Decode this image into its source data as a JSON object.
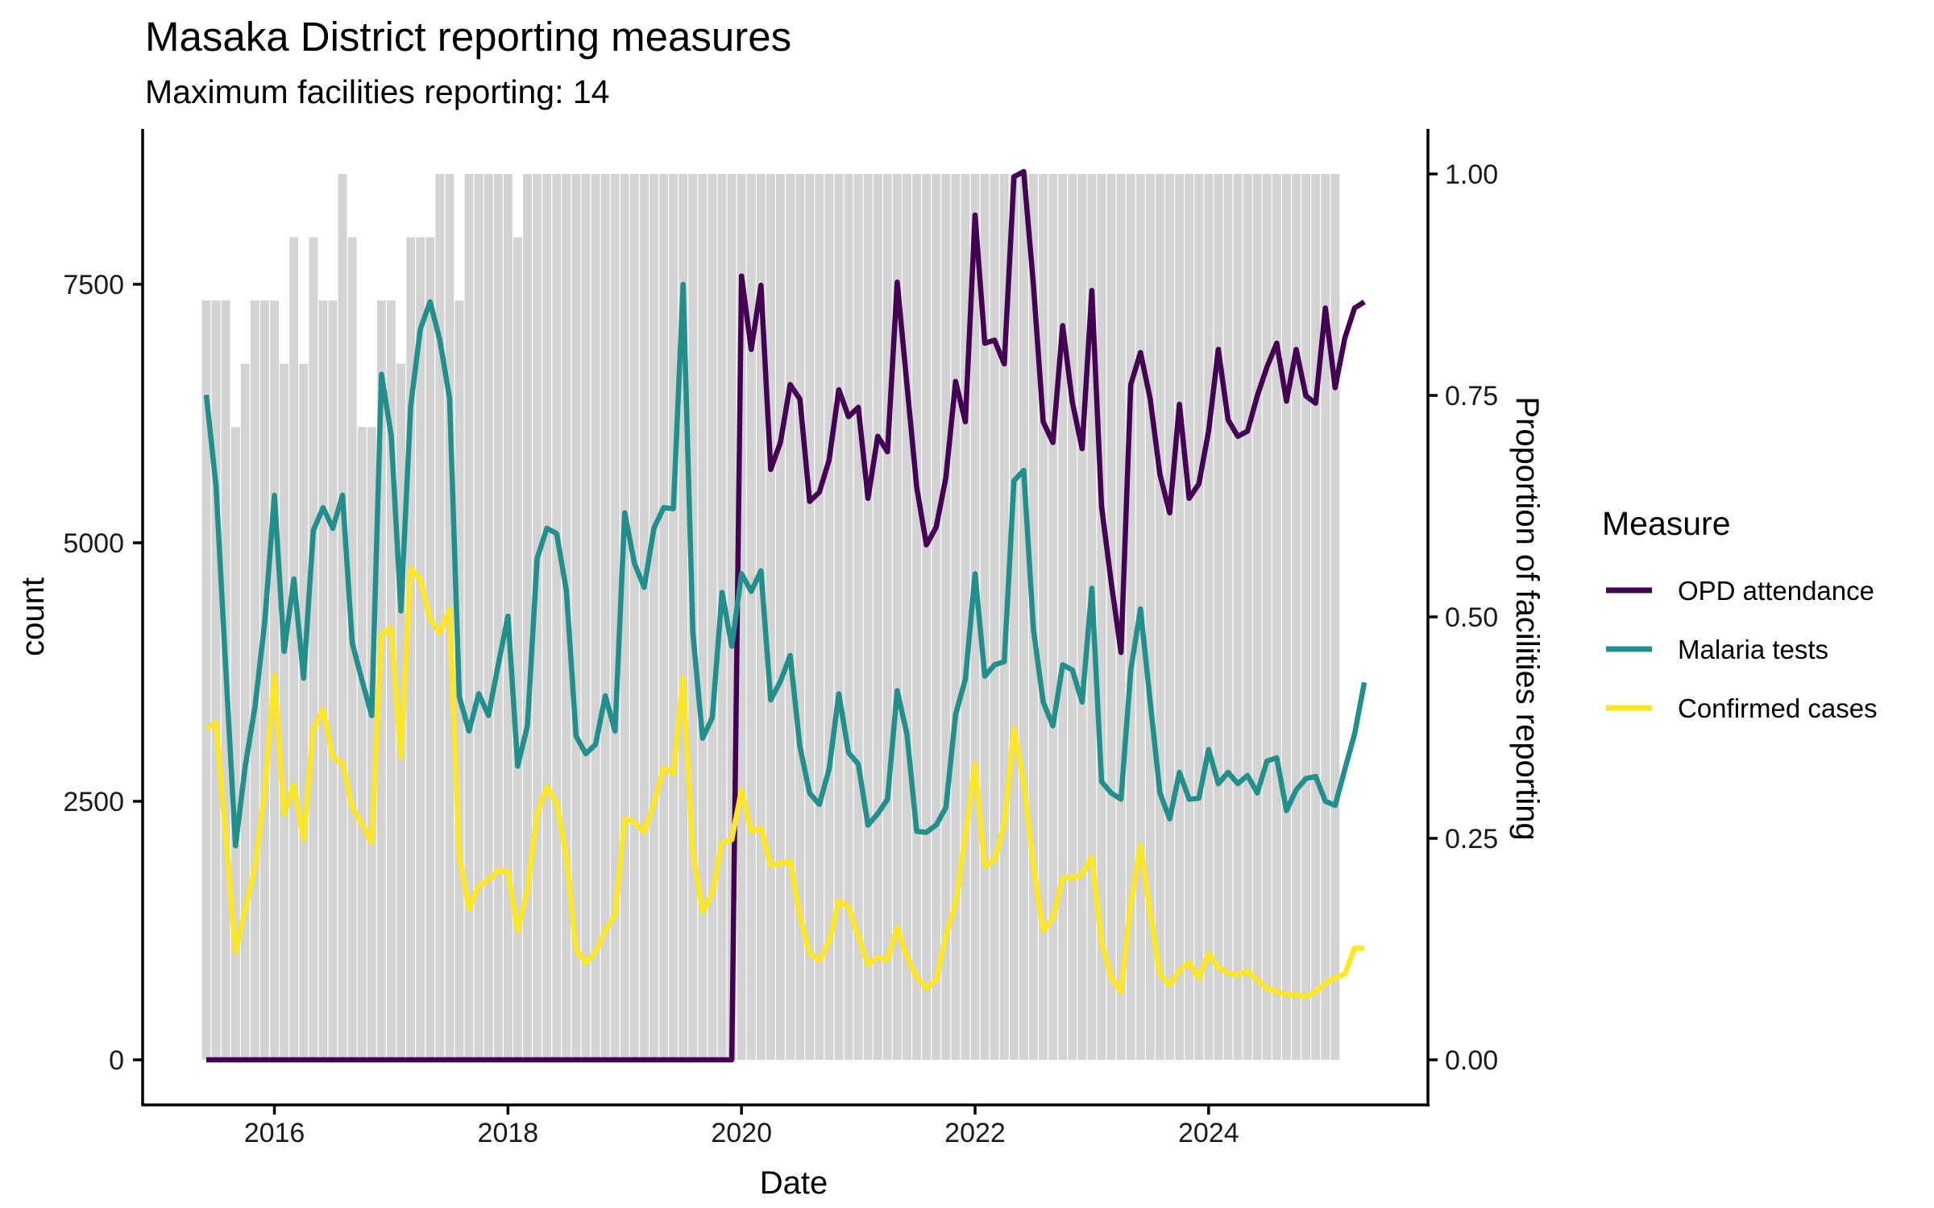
{
  "chart_data": {
    "type": "line",
    "title": "Masaka District reporting measures",
    "subtitle": "Maximum facilities reporting: 14",
    "xlabel": "Date",
    "ylabel": "count",
    "y2label": "Proportion of facilities reporting",
    "max_facilities": 14,
    "x_start": "2015-06",
    "x_end": "2025-05",
    "x_ticks": [
      "2016",
      "2018",
      "2020",
      "2022",
      "2024"
    ],
    "x_range": [
      "2014-12",
      "2025-10"
    ],
    "ylim": [
      -400,
      9000
    ],
    "y_ticks": [
      0,
      2500,
      5000,
      7500
    ],
    "y_tick_labels": [
      "0",
      "2500",
      "5000",
      "7500"
    ],
    "y2lim": [
      -0.05,
      1.05
    ],
    "y2_ticks": [
      0,
      0.25,
      0.5,
      0.75,
      1.0
    ],
    "y2_tick_labels": [
      "0.00",
      "0.25",
      "0.50",
      "0.75",
      "1.00"
    ],
    "grid": false,
    "legend": {
      "title": "Measure",
      "position": "right",
      "entries": [
        "OPD attendance",
        "Malaria tests",
        "Confirmed cases"
      ]
    },
    "facilities_reporting": {
      "name": "Facilities reporting (bars, right axis as proportion of 14)",
      "color": "#d3d3d3",
      "values": [
        12,
        12,
        12,
        10,
        11,
        12,
        12,
        12,
        11,
        13,
        11,
        13,
        12,
        12,
        14,
        13,
        10,
        10,
        12,
        12,
        11,
        13,
        13,
        13,
        14,
        14,
        12,
        14,
        14,
        14,
        14,
        14,
        13,
        14,
        14,
        14,
        14,
        14,
        14,
        14,
        14,
        14,
        14,
        14,
        14,
        14,
        14,
        14,
        14,
        14,
        14,
        14,
        14,
        14,
        14,
        14,
        14,
        14,
        14,
        14,
        14,
        14,
        14,
        14,
        14,
        14,
        14,
        14,
        14,
        14,
        14,
        14,
        14,
        14,
        14,
        14,
        14,
        14,
        14,
        14,
        14,
        14,
        14,
        14,
        14,
        14,
        14,
        14,
        14,
        14,
        14,
        14,
        14,
        14,
        14,
        14,
        14,
        14,
        14,
        14,
        14,
        14,
        14,
        14,
        14,
        14,
        14,
        14,
        14,
        14,
        14,
        14,
        14,
        14,
        14,
        14,
        14
      ]
    },
    "series": [
      {
        "name": "OPD attendance",
        "color": "#440154",
        "values": [
          0,
          0,
          0,
          0,
          0,
          0,
          0,
          0,
          0,
          0,
          0,
          0,
          0,
          0,
          0,
          0,
          0,
          0,
          0,
          0,
          0,
          0,
          0,
          0,
          0,
          0,
          0,
          0,
          0,
          0,
          0,
          0,
          0,
          0,
          0,
          0,
          0,
          0,
          0,
          0,
          0,
          0,
          0,
          0,
          0,
          0,
          0,
          0,
          0,
          0,
          0,
          0,
          0,
          0,
          0,
          7580,
          6870,
          7490,
          5710,
          5970,
          6530,
          6390,
          5400,
          5490,
          5800,
          6480,
          6220,
          6310,
          5430,
          6030,
          5880,
          7520,
          6530,
          5540,
          4980,
          5150,
          5630,
          6560,
          6170,
          8170,
          6930,
          6960,
          6730,
          8540,
          8590,
          7490,
          6170,
          5970,
          7100,
          6360,
          5910,
          7440,
          5350,
          4610,
          3940,
          6530,
          6840,
          6390,
          5660,
          5290,
          6340,
          5430,
          5570,
          6080,
          6870,
          6190,
          6030,
          6080,
          6420,
          6700,
          6930,
          6370,
          6870,
          6420,
          6350,
          7270,
          6500,
          6980,
          7270,
          7330
        ]
      },
      {
        "name": "Malaria tests",
        "color": "#21908c",
        "values": [
          6430,
          5550,
          3780,
          2070,
          2840,
          3410,
          4230,
          5460,
          3950,
          4650,
          3690,
          5120,
          5340,
          5140,
          5460,
          4030,
          3670,
          3330,
          6630,
          6040,
          4340,
          6320,
          7070,
          7330,
          6960,
          6400,
          3510,
          3180,
          3540,
          3330,
          3820,
          4290,
          2840,
          3230,
          4850,
          5140,
          5090,
          4540,
          3130,
          2960,
          3050,
          3520,
          3180,
          5290,
          4800,
          4570,
          5140,
          5340,
          5330,
          7500,
          4130,
          3110,
          3310,
          4520,
          4000,
          4700,
          4530,
          4730,
          3480,
          3660,
          3910,
          3030,
          2580,
          2470,
          2810,
          3540,
          2970,
          2860,
          2270,
          2380,
          2520,
          3570,
          3150,
          2210,
          2200,
          2270,
          2440,
          3340,
          3680,
          4700,
          3710,
          3820,
          3850,
          5600,
          5700,
          4160,
          3460,
          3230,
          3820,
          3770,
          3460,
          4560,
          2690,
          2580,
          2520,
          3770,
          4360,
          3460,
          2580,
          2330,
          2780,
          2520,
          2530,
          3000,
          2670,
          2780,
          2670,
          2750,
          2580,
          2890,
          2920,
          2410,
          2610,
          2720,
          2740,
          2500,
          2460,
          2810,
          3150,
          3650
        ]
      },
      {
        "name": "Confirmed cases",
        "color": "#fde725",
        "values": [
          3200,
          3260,
          2170,
          1040,
          1460,
          1860,
          2590,
          3720,
          2380,
          2660,
          2130,
          3200,
          3390,
          2930,
          2870,
          2440,
          2280,
          2100,
          4110,
          4180,
          2930,
          4750,
          4650,
          4260,
          4130,
          4360,
          1970,
          1460,
          1680,
          1740,
          1830,
          1820,
          1250,
          1640,
          2380,
          2640,
          2480,
          1970,
          1070,
          940,
          1040,
          1250,
          1400,
          2330,
          2300,
          2200,
          2480,
          2820,
          2770,
          3690,
          2020,
          1430,
          1610,
          2100,
          2130,
          2610,
          2210,
          2240,
          1880,
          1900,
          1920,
          1390,
          1030,
          960,
          1140,
          1540,
          1480,
          1200,
          920,
          990,
          970,
          1280,
          1000,
          800,
          690,
          770,
          1200,
          1510,
          2160,
          2860,
          1870,
          1930,
          2270,
          3200,
          2690,
          1880,
          1250,
          1370,
          1760,
          1760,
          1790,
          1960,
          1140,
          800,
          660,
          1510,
          2070,
          1420,
          830,
          720,
          860,
          940,
          790,
          1030,
          890,
          840,
          820,
          860,
          770,
          690,
          660,
          630,
          630,
          610,
          660,
          740,
          790,
          830,
          1080,
          1080
        ]
      }
    ]
  }
}
